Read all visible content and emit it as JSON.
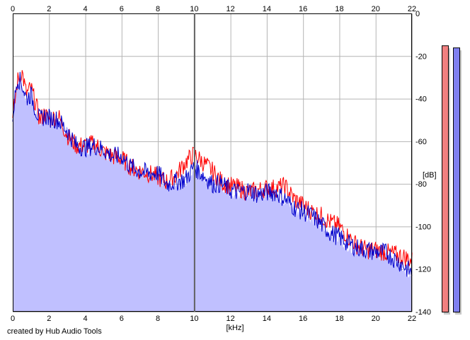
{
  "credit": "created by Hub Audio Tools",
  "chart_data": {
    "type": "line",
    "xlabel": "[kHz]",
    "ylabel": "[dB]",
    "xlim": [
      0,
      22
    ],
    "ylim": [
      -140,
      0
    ],
    "x_ticks": [
      0,
      2,
      4,
      6,
      8,
      10,
      12,
      14,
      16,
      18,
      20,
      22
    ],
    "y_ticks": [
      0,
      -20,
      -40,
      -60,
      -80,
      -100,
      -120,
      -140
    ],
    "grid": true,
    "x_ticks_top_and_bottom": true,
    "y_ticks_right": true,
    "colors": {
      "fill": "#c0c0ff",
      "red": "#ff0000",
      "blue": "#0000cc",
      "grid": "#b4b4b4",
      "meter_red": "#f08080",
      "meter_blue": "#8080f0"
    },
    "series": [
      {
        "color": "#ff0000",
        "x": [
          0,
          0.25,
          0.5,
          0.75,
          1.0,
          1.25,
          1.5,
          1.75,
          2.0,
          2.5,
          3.0,
          3.5,
          4.0,
          4.5,
          5.0,
          5.5,
          6.0,
          6.5,
          7.0,
          7.5,
          8.0,
          8.5,
          9.0,
          9.5,
          10.0,
          10.5,
          11.0,
          11.5,
          12.0,
          12.5,
          13.0,
          13.5,
          14.0,
          14.5,
          15.0,
          15.5,
          16.0,
          16.5,
          17.0,
          17.5,
          18.0,
          18.5,
          19.0,
          19.5,
          20.0,
          20.5,
          21.0,
          21.5,
          22.0
        ],
        "values": [
          -50,
          -32,
          -27,
          -38,
          -35,
          -42,
          -50,
          -47,
          -50,
          -48,
          -57,
          -62,
          -62,
          -61,
          -65,
          -67,
          -68,
          -72,
          -74,
          -75,
          -77,
          -79,
          -76,
          -70,
          -66,
          -70,
          -74,
          -79,
          -81,
          -82,
          -84,
          -83,
          -82,
          -82,
          -81,
          -87,
          -90,
          -93,
          -95,
          -98,
          -100,
          -105,
          -109,
          -111,
          -111,
          -112,
          -113,
          -114,
          -116
        ]
      },
      {
        "color": "#0000cc",
        "x": [
          0,
          0.25,
          0.5,
          0.75,
          1.0,
          1.25,
          1.5,
          1.75,
          2.0,
          2.5,
          3.0,
          3.5,
          4.0,
          4.5,
          5.0,
          5.5,
          6.0,
          6.5,
          7.0,
          7.5,
          8.0,
          8.5,
          9.0,
          9.5,
          10.0,
          10.5,
          11.0,
          11.5,
          12.0,
          12.5,
          13.0,
          13.5,
          14.0,
          14.5,
          15.0,
          15.5,
          16.0,
          16.5,
          17.0,
          17.5,
          18.0,
          18.5,
          19.0,
          19.5,
          20.0,
          20.5,
          21.0,
          21.5,
          22.0
        ],
        "values": [
          -48,
          -30,
          -33,
          -40,
          -38,
          -45,
          -50,
          -48,
          -49,
          -50,
          -55,
          -62,
          -63,
          -62,
          -64,
          -67,
          -67,
          -72,
          -74,
          -75,
          -75,
          -80,
          -79,
          -78,
          -72,
          -76,
          -80,
          -80,
          -83,
          -84,
          -83,
          -85,
          -84,
          -84,
          -87,
          -91,
          -93,
          -95,
          -99,
          -103,
          -105,
          -108,
          -110,
          -111,
          -112,
          -112,
          -115,
          -118,
          -122
        ]
      }
    ],
    "level_meters": [
      {
        "color": "#f08080",
        "level_db": -15
      },
      {
        "color": "#8080f0",
        "level_db": -16
      }
    ]
  }
}
